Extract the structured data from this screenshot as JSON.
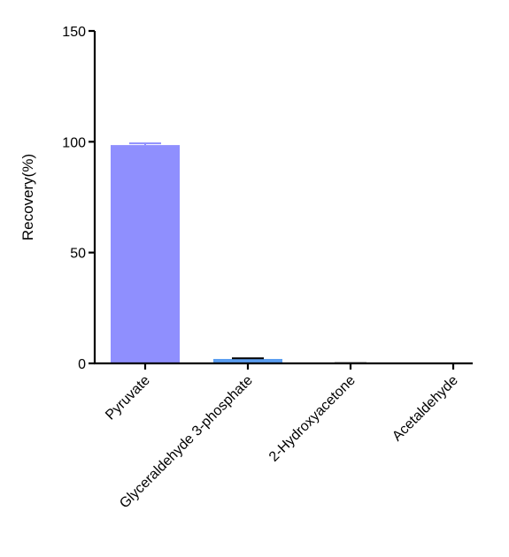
{
  "chart_data": {
    "type": "bar",
    "title": "",
    "xlabel": "",
    "ylabel": "Recovery(%)",
    "ylim": [
      0,
      150
    ],
    "yticks": [
      0,
      50,
      100,
      150
    ],
    "grid": false,
    "legend": "none",
    "categories": [
      "Pyruvate",
      "Glyceraldehyde 3-phosphate",
      "2-Hydroxyacetone",
      "Acetaldehyde"
    ],
    "values": [
      98.5,
      2.0,
      0.2,
      0.0
    ],
    "errors": [
      0.8,
      0.3,
      0.0,
      0.0
    ],
    "bar_colors": [
      "#8f8ffe",
      "#5b9ef1",
      "#7fb0f0",
      "#7fb0f0"
    ],
    "error_colors": [
      "#8f8ffe",
      "#000000",
      "#000000",
      "#000000"
    ],
    "axis_color": "#000000"
  }
}
